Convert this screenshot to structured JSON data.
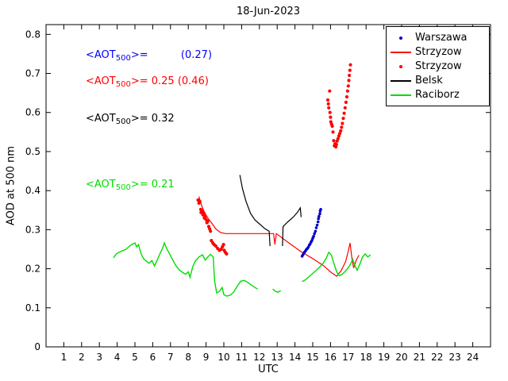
{
  "chart_data": {
    "type": "line",
    "title": "18-Jun-2023",
    "xlabel": "UTC",
    "ylabel": "AOD at 500 nm",
    "xlim": [
      0,
      25
    ],
    "ylim": [
      0,
      0.825
    ],
    "grid": false,
    "legend_position": "top-right",
    "xtick_values": [
      1,
      2,
      3,
      4,
      5,
      6,
      7,
      8,
      9,
      10,
      11,
      12,
      13,
      14,
      15,
      16,
      17,
      18,
      19,
      20,
      21,
      22,
      23,
      24
    ],
    "xtick_labels": [
      "1",
      "2",
      "3",
      "4",
      "5",
      "6",
      "7",
      "8",
      "9",
      "10",
      "11",
      "12",
      "13",
      "14",
      "15",
      "16",
      "17",
      "18",
      "19",
      "20",
      "21",
      "22",
      "23",
      "24"
    ],
    "ytick_values": [
      0,
      0.1,
      0.2,
      0.3,
      0.4,
      0.5,
      0.6,
      0.7,
      0.8
    ],
    "ytick_labels": [
      "0",
      "0.1",
      "0.2",
      "0.3",
      "0.4",
      "0.5",
      "0.6",
      "0.7",
      "0.8"
    ],
    "series": [
      {
        "name": "Warszawa",
        "type": "scatter",
        "color": "#0000cc",
        "marker_r": 1.8,
        "legend_marker": "dot",
        "points": [
          [
            14.4,
            0.232
          ],
          [
            14.45,
            0.236
          ],
          [
            14.5,
            0.24
          ],
          [
            14.55,
            0.243
          ],
          [
            14.6,
            0.246
          ],
          [
            14.65,
            0.25
          ],
          [
            14.7,
            0.252
          ],
          [
            14.75,
            0.255
          ],
          [
            14.8,
            0.26
          ],
          [
            14.85,
            0.263
          ],
          [
            14.9,
            0.268
          ],
          [
            14.95,
            0.272
          ],
          [
            15.0,
            0.278
          ],
          [
            15.05,
            0.283
          ],
          [
            15.1,
            0.29
          ],
          [
            15.15,
            0.296
          ],
          [
            15.2,
            0.305
          ],
          [
            15.25,
            0.312
          ],
          [
            15.3,
            0.32
          ],
          [
            15.32,
            0.328
          ],
          [
            15.35,
            0.334
          ],
          [
            15.4,
            0.341
          ],
          [
            15.42,
            0.348
          ],
          [
            15.45,
            0.352
          ]
        ]
      },
      {
        "name": "Strzyzow",
        "type": "line",
        "color": "#ff0000",
        "width": 1.2,
        "legend_marker": "line",
        "segments": [
          [
            [
              8.6,
              0.385
            ],
            [
              8.75,
              0.362
            ],
            [
              8.9,
              0.345
            ],
            [
              9.1,
              0.33
            ],
            [
              9.3,
              0.318
            ],
            [
              9.55,
              0.302
            ],
            [
              9.8,
              0.293
            ],
            [
              10.1,
              0.29
            ],
            [
              12.8,
              0.29
            ],
            [
              12.87,
              0.262
            ],
            [
              12.95,
              0.29
            ],
            [
              13.6,
              0.268
            ],
            [
              14.3,
              0.245
            ],
            [
              15.0,
              0.226
            ],
            [
              15.6,
              0.208
            ],
            [
              16.05,
              0.19
            ],
            [
              16.35,
              0.181
            ],
            [
              16.6,
              0.195
            ],
            [
              16.85,
              0.218
            ],
            [
              17.0,
              0.245
            ],
            [
              17.1,
              0.266
            ],
            [
              17.2,
              0.228
            ],
            [
              17.3,
              0.202
            ],
            [
              17.45,
              0.222
            ],
            [
              17.6,
              0.235
            ]
          ]
        ]
      },
      {
        "name": "Strzyzow",
        "type": "scatter",
        "color": "#ff0000",
        "marker_r": 2.1,
        "legend_marker": "dot",
        "points": [
          [
            8.55,
            0.376
          ],
          [
            8.6,
            0.368
          ],
          [
            8.65,
            0.372
          ],
          [
            8.7,
            0.352
          ],
          [
            8.72,
            0.344
          ],
          [
            8.78,
            0.348
          ],
          [
            8.82,
            0.338
          ],
          [
            8.88,
            0.342
          ],
          [
            8.9,
            0.33
          ],
          [
            8.95,
            0.334
          ],
          [
            9.0,
            0.326
          ],
          [
            9.05,
            0.318
          ],
          [
            9.1,
            0.322
          ],
          [
            9.15,
            0.308
          ],
          [
            9.2,
            0.302
          ],
          [
            9.25,
            0.296
          ],
          [
            9.3,
            0.272
          ],
          [
            9.38,
            0.266
          ],
          [
            9.45,
            0.262
          ],
          [
            9.55,
            0.258
          ],
          [
            9.65,
            0.252
          ],
          [
            9.75,
            0.247
          ],
          [
            9.85,
            0.25
          ],
          [
            9.92,
            0.256
          ],
          [
            9.98,
            0.262
          ],
          [
            10.02,
            0.247
          ],
          [
            10.08,
            0.242
          ],
          [
            10.15,
            0.238
          ],
          [
            15.85,
            0.632
          ],
          [
            15.88,
            0.622
          ],
          [
            15.9,
            0.612
          ],
          [
            15.95,
            0.655
          ],
          [
            15.97,
            0.6
          ],
          [
            16.0,
            0.588
          ],
          [
            16.02,
            0.576
          ],
          [
            16.06,
            0.57
          ],
          [
            16.1,
            0.565
          ],
          [
            16.14,
            0.55
          ],
          [
            16.18,
            0.528
          ],
          [
            16.22,
            0.515
          ],
          [
            16.26,
            0.52
          ],
          [
            16.3,
            0.512
          ],
          [
            16.33,
            0.518
          ],
          [
            16.37,
            0.527
          ],
          [
            16.42,
            0.533
          ],
          [
            16.47,
            0.54
          ],
          [
            16.52,
            0.546
          ],
          [
            16.57,
            0.553
          ],
          [
            16.62,
            0.562
          ],
          [
            16.67,
            0.572
          ],
          [
            16.72,
            0.585
          ],
          [
            16.77,
            0.598
          ],
          [
            16.82,
            0.612
          ],
          [
            16.87,
            0.626
          ],
          [
            16.92,
            0.64
          ],
          [
            16.96,
            0.655
          ],
          [
            17.0,
            0.668
          ],
          [
            17.03,
            0.682
          ],
          [
            17.06,
            0.695
          ],
          [
            17.09,
            0.708
          ],
          [
            17.12,
            0.722
          ]
        ]
      },
      {
        "name": "Belsk",
        "type": "line",
        "color": "#000000",
        "width": 1.2,
        "legend_marker": "line",
        "segments": [
          [
            [
              10.9,
              0.44
            ],
            [
              11.05,
              0.405
            ],
            [
              11.25,
              0.372
            ],
            [
              11.5,
              0.342
            ],
            [
              11.75,
              0.325
            ],
            [
              12.0,
              0.315
            ],
            [
              12.3,
              0.303
            ],
            [
              12.55,
              0.296
            ],
            [
              12.6,
              0.258
            ]
          ],
          [
            [
              13.3,
              0.258
            ],
            [
              13.33,
              0.308
            ],
            [
              13.6,
              0.32
            ],
            [
              13.9,
              0.332
            ],
            [
              14.15,
              0.345
            ],
            [
              14.3,
              0.356
            ],
            [
              14.35,
              0.332
            ]
          ]
        ]
      },
      {
        "name": "Raciborz",
        "type": "line",
        "color": "#00dd00",
        "width": 1.4,
        "legend_marker": "line",
        "segments": [
          [
            [
              3.8,
              0.228
            ],
            [
              3.95,
              0.238
            ],
            [
              4.1,
              0.242
            ],
            [
              4.3,
              0.246
            ],
            [
              4.5,
              0.25
            ],
            [
              4.7,
              0.258
            ],
            [
              4.85,
              0.263
            ],
            [
              5.0,
              0.266
            ],
            [
              5.1,
              0.256
            ],
            [
              5.2,
              0.262
            ],
            [
              5.35,
              0.238
            ],
            [
              5.5,
              0.225
            ],
            [
              5.65,
              0.219
            ],
            [
              5.8,
              0.214
            ],
            [
              5.95,
              0.221
            ],
            [
              6.1,
              0.207
            ],
            [
              6.25,
              0.222
            ],
            [
              6.4,
              0.238
            ],
            [
              6.55,
              0.252
            ],
            [
              6.65,
              0.266
            ],
            [
              6.78,
              0.252
            ],
            [
              6.95,
              0.238
            ],
            [
              7.1,
              0.225
            ],
            [
              7.3,
              0.208
            ],
            [
              7.5,
              0.197
            ],
            [
              7.7,
              0.19
            ],
            [
              7.85,
              0.186
            ],
            [
              8.0,
              0.192
            ],
            [
              8.1,
              0.178
            ],
            [
              8.25,
              0.205
            ],
            [
              8.4,
              0.22
            ],
            [
              8.6,
              0.23
            ],
            [
              8.8,
              0.236
            ],
            [
              8.95,
              0.222
            ],
            [
              9.1,
              0.23
            ],
            [
              9.25,
              0.237
            ],
            [
              9.4,
              0.23
            ],
            [
              9.48,
              0.168
            ],
            [
              9.6,
              0.138
            ],
            [
              9.75,
              0.142
            ],
            [
              9.9,
              0.152
            ],
            [
              10.0,
              0.134
            ],
            [
              10.15,
              0.13
            ],
            [
              10.35,
              0.132
            ],
            [
              10.55,
              0.14
            ],
            [
              10.75,
              0.155
            ],
            [
              10.95,
              0.168
            ],
            [
              11.15,
              0.17
            ],
            [
              11.35,
              0.165
            ],
            [
              11.55,
              0.158
            ],
            [
              11.75,
              0.152
            ],
            [
              11.9,
              0.148
            ]
          ],
          [
            [
              12.75,
              0.148
            ],
            [
              12.9,
              0.142
            ],
            [
              13.05,
              0.14
            ],
            [
              13.2,
              0.144
            ]
          ],
          [
            [
              14.4,
              0.167
            ],
            [
              14.6,
              0.172
            ],
            [
              14.8,
              0.18
            ],
            [
              15.0,
              0.188
            ],
            [
              15.2,
              0.196
            ],
            [
              15.4,
              0.205
            ],
            [
              15.6,
              0.215
            ],
            [
              15.75,
              0.226
            ],
            [
              15.9,
              0.242
            ],
            [
              16.05,
              0.235
            ],
            [
              16.2,
              0.212
            ],
            [
              16.35,
              0.192
            ],
            [
              16.5,
              0.182
            ],
            [
              16.65,
              0.186
            ],
            [
              16.8,
              0.192
            ],
            [
              16.95,
              0.2
            ],
            [
              17.1,
              0.21
            ],
            [
              17.25,
              0.224
            ],
            [
              17.35,
              0.21
            ],
            [
              17.5,
              0.196
            ],
            [
              17.65,
              0.212
            ],
            [
              17.8,
              0.23
            ],
            [
              17.95,
              0.238
            ],
            [
              18.1,
              0.23
            ],
            [
              18.25,
              0.236
            ]
          ]
        ]
      }
    ],
    "annotations": [
      {
        "series": "Warszawa",
        "color": "#0000ff",
        "prefix": "<AOT",
        "sub": "500",
        "rest": ">=          (0.27)"
      },
      {
        "series": "Strzyzow",
        "color": "#ff0000",
        "prefix": "<AOT",
        "sub": "500",
        "rest": ">= 0.25 (0.46)"
      },
      {
        "series": "Belsk",
        "color": "#000000",
        "prefix": "<AOT",
        "sub": "500",
        "rest": ">= 0.32"
      },
      {
        "series": "Raciborz",
        "color": "#00dd00",
        "prefix": "<AOT",
        "sub": "500",
        "rest": ">= 0.21"
      }
    ]
  }
}
